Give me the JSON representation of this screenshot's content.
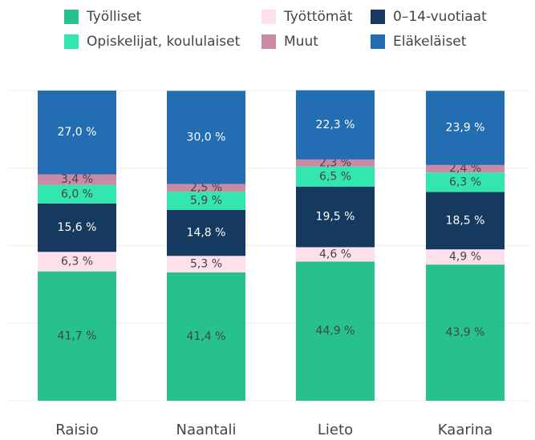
{
  "chart_data": {
    "type": "stacked_bar",
    "categories": [
      "Raisio",
      "Naantali",
      "Lieto",
      "Kaarina"
    ],
    "series": [
      {
        "name": "Työlliset",
        "color": "#26c18f",
        "values": [
          41.7,
          41.4,
          44.9,
          43.9
        ],
        "value_labels": [
          "41,7 %",
          "41,4 %",
          "44,9 %",
          "43,9 %"
        ]
      },
      {
        "name": "Työttömät",
        "color": "#fde0ec",
        "values": [
          6.3,
          5.3,
          4.6,
          4.9
        ],
        "value_labels": [
          "6,3 %",
          "5,3 %",
          "4,6 %",
          "4,9 %"
        ]
      },
      {
        "name": "0–14-vuotiaat",
        "color": "#163a5f",
        "values": [
          15.6,
          14.8,
          19.5,
          18.5
        ],
        "value_labels": [
          "15,6 %",
          "14,8 %",
          "19,5 %",
          "18,5 %"
        ]
      },
      {
        "name": "Opiskelijat, koululaiset",
        "color": "#33e6b0",
        "values": [
          6.0,
          5.9,
          6.5,
          6.3
        ],
        "value_labels": [
          "6,0 %",
          "5,9 %",
          "6,5 %",
          "6,3 %"
        ]
      },
      {
        "name": "Muut",
        "color": "#c98aa5",
        "values": [
          3.4,
          2.5,
          2.3,
          2.4
        ],
        "value_labels": [
          "3,4 %",
          "2,5 %",
          "2,3 %",
          "2,4 %"
        ]
      },
      {
        "name": "Eläkeläiset",
        "color": "#236db3",
        "values": [
          27.0,
          30.0,
          22.3,
          23.9
        ],
        "value_labels": [
          "27,0 %",
          "30,0 %",
          "22,3 %",
          "23,9 %"
        ]
      }
    ],
    "ylim": [
      0,
      100
    ],
    "yticks": [
      0,
      25,
      50,
      75,
      100
    ],
    "grid": true
  }
}
